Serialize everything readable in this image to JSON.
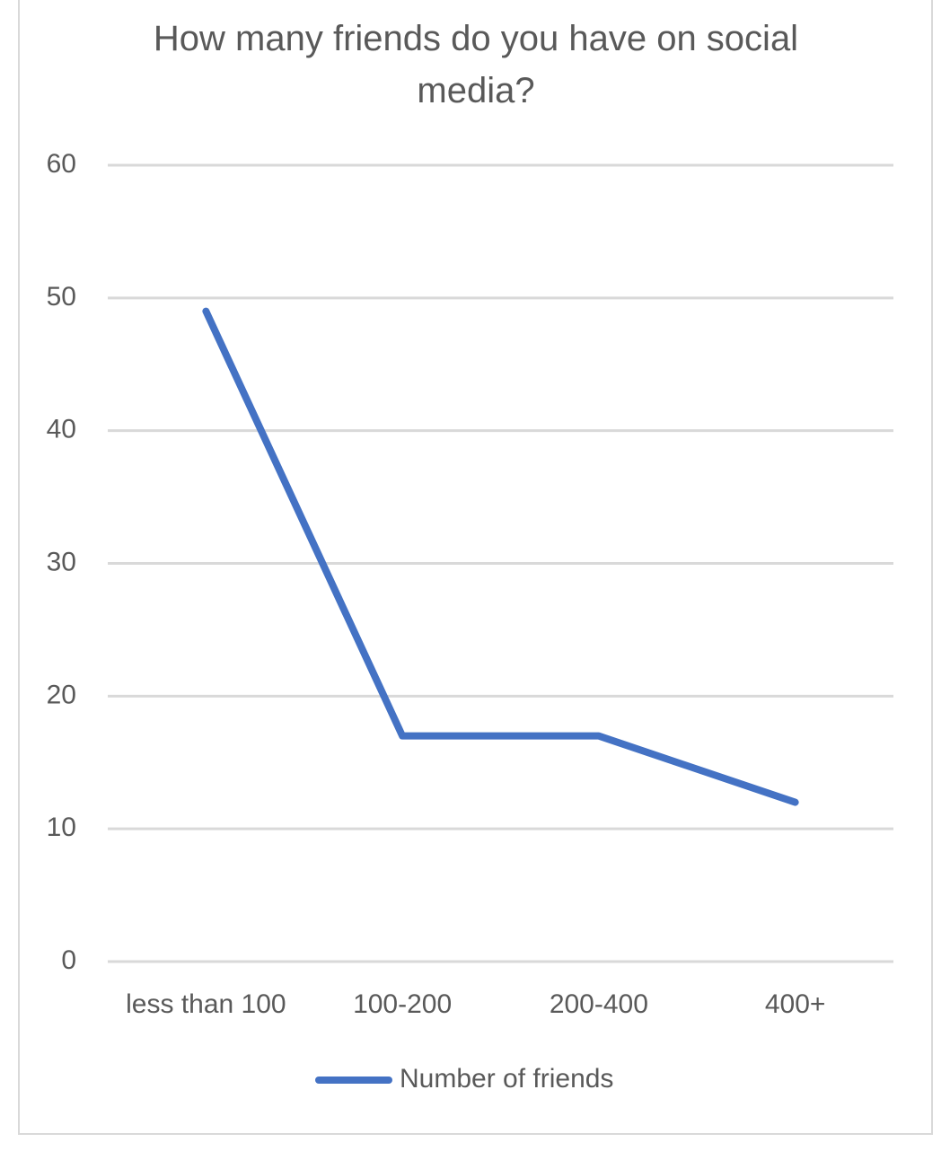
{
  "chart_data": {
    "type": "line",
    "title": "How many friends do you have on social media?",
    "categories": [
      "less than 100",
      "100-200",
      "200-400",
      "400+"
    ],
    "series": [
      {
        "name": "Number of friends",
        "color": "#4472c4",
        "values": [
          49,
          17,
          17,
          12
        ]
      }
    ],
    "ylim": [
      0,
      60
    ],
    "yticks": [
      0,
      10,
      20,
      30,
      40,
      50,
      60
    ],
    "grid": true,
    "legend": "bottom"
  }
}
